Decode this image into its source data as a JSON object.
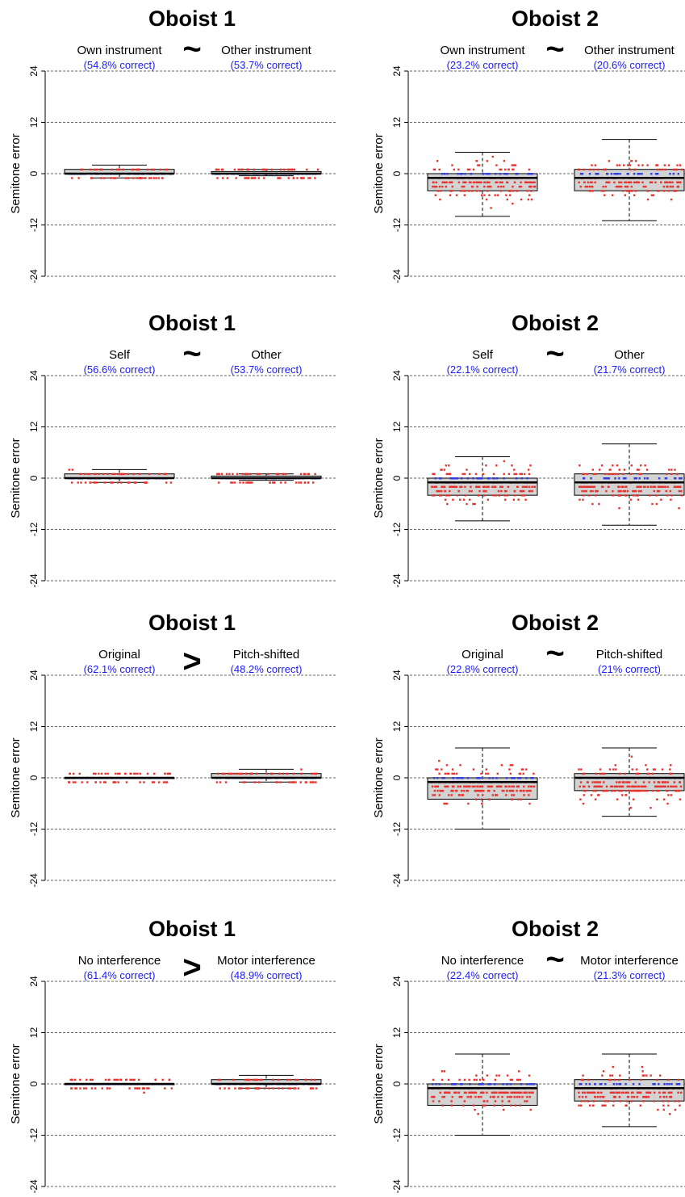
{
  "chart_data": [
    {
      "type": "box",
      "title": "Oboist 1",
      "ylabel": "Semitone error",
      "ylim": [
        -24,
        24
      ],
      "yticks": [
        "24",
        "12",
        "0",
        "-12",
        "-24"
      ],
      "grid": "horizontal dashed",
      "comparison": "~",
      "series": [
        {
          "name": "Own instrument",
          "accuracy": "(54.8% correct)",
          "box": {
            "q1": 0,
            "median": 0,
            "q3": 1,
            "whisker_low": -1,
            "whisker_high": 2
          }
        },
        {
          "name": "Other instrument",
          "accuracy": "(53.7% correct)",
          "box": {
            "q1": 0,
            "median": 0,
            "q3": 0.5,
            "whisker_low": -0.5,
            "whisker_high": 1
          }
        }
      ]
    },
    {
      "type": "box",
      "title": "Oboist 2",
      "ylabel": "Semitone error",
      "ylim": [
        -24,
        24
      ],
      "yticks": [
        "24",
        "12",
        "0",
        "-12",
        "-24"
      ],
      "grid": "horizontal dashed",
      "comparison": "~",
      "series": [
        {
          "name": "Own instrument",
          "accuracy": "(23.2% correct)",
          "box": {
            "q1": -4,
            "median": -1,
            "q3": 0,
            "whisker_low": -10,
            "whisker_high": 5
          }
        },
        {
          "name": "Other instrument",
          "accuracy": "(20.6% correct)",
          "box": {
            "q1": -4,
            "median": -1,
            "q3": 1,
            "whisker_low": -11,
            "whisker_high": 8
          }
        }
      ]
    },
    {
      "type": "box",
      "title": "Oboist 1",
      "ylabel": "Semitone error",
      "ylim": [
        -24,
        24
      ],
      "yticks": [
        "24",
        "12",
        "0",
        "-12",
        "-24"
      ],
      "grid": "horizontal dashed",
      "comparison": "~",
      "series": [
        {
          "name": "Self",
          "accuracy": "(56.6% correct)",
          "box": {
            "q1": 0,
            "median": 0,
            "q3": 1,
            "whisker_low": -1,
            "whisker_high": 2
          }
        },
        {
          "name": "Other",
          "accuracy": "(53.7% correct)",
          "box": {
            "q1": 0,
            "median": 0,
            "q3": 0.5,
            "whisker_low": -0.5,
            "whisker_high": 1
          }
        }
      ]
    },
    {
      "type": "box",
      "title": "Oboist 2",
      "ylabel": "Semitone error",
      "ylim": [
        -24,
        24
      ],
      "yticks": [
        "24",
        "12",
        "0",
        "-12",
        "-24"
      ],
      "grid": "horizontal dashed",
      "comparison": "~",
      "series": [
        {
          "name": "Self",
          "accuracy": "(22.1% correct)",
          "box": {
            "q1": -4,
            "median": -1,
            "q3": 0,
            "whisker_low": -10,
            "whisker_high": 5
          }
        },
        {
          "name": "Other",
          "accuracy": "(21.7% correct)",
          "box": {
            "q1": -4,
            "median": -1,
            "q3": 1,
            "whisker_low": -11,
            "whisker_high": 8
          }
        }
      ]
    },
    {
      "type": "box",
      "title": "Oboist 1",
      "ylabel": "Semitone error",
      "ylim": [
        -24,
        24
      ],
      "yticks": [
        "24",
        "12",
        "0",
        "-12",
        "-24"
      ],
      "grid": "horizontal dashed",
      "comparison": ">",
      "series": [
        {
          "name": "Original",
          "accuracy": "(62.1% correct)",
          "box": {
            "q1": 0,
            "median": 0,
            "q3": 0,
            "whisker_low": 0,
            "whisker_high": 0
          }
        },
        {
          "name": "Pitch-shifted",
          "accuracy": "(48.2% correct)",
          "box": {
            "q1": 0,
            "median": 0,
            "q3": 1,
            "whisker_low": -1,
            "whisker_high": 2
          }
        }
      ]
    },
    {
      "type": "box",
      "title": "Oboist 2",
      "ylabel": "Semitone error",
      "ylim": [
        -24,
        24
      ],
      "yticks": [
        "24",
        "12",
        "0",
        "-12",
        "-24"
      ],
      "grid": "horizontal dashed",
      "comparison": "~",
      "series": [
        {
          "name": "Original",
          "accuracy": "(22.8% correct)",
          "box": {
            "q1": -5,
            "median": -1,
            "q3": 0,
            "whisker_low": -12,
            "whisker_high": 7
          }
        },
        {
          "name": "Pitch-shifted",
          "accuracy": "(21% correct)",
          "box": {
            "q1": -3,
            "median": 0,
            "q3": 1,
            "whisker_low": -9,
            "whisker_high": 7
          }
        }
      ]
    },
    {
      "type": "box",
      "title": "Oboist 1",
      "ylabel": "Semitone error",
      "ylim": [
        -24,
        24
      ],
      "yticks": [
        "24",
        "12",
        "0",
        "-12",
        "-24"
      ],
      "grid": "horizontal dashed",
      "comparison": ">",
      "series": [
        {
          "name": "No interference",
          "accuracy": "(61.4% correct)",
          "box": {
            "q1": 0,
            "median": 0,
            "q3": 0,
            "whisker_low": 0,
            "whisker_high": 0
          }
        },
        {
          "name": "Motor interference",
          "accuracy": "(48.9% correct)",
          "box": {
            "q1": 0,
            "median": 0,
            "q3": 1,
            "whisker_low": -1,
            "whisker_high": 2
          }
        }
      ]
    },
    {
      "type": "box",
      "title": "Oboist 2",
      "ylabel": "Semitone error",
      "ylim": [
        -24,
        24
      ],
      "yticks": [
        "24",
        "12",
        "0",
        "-12",
        "-24"
      ],
      "grid": "horizontal dashed",
      "comparison": "~",
      "series": [
        {
          "name": "No interference",
          "accuracy": "(22.4% correct)",
          "box": {
            "q1": -5,
            "median": -1,
            "q3": 0,
            "whisker_low": -12,
            "whisker_high": 7
          }
        },
        {
          "name": "Motor interference",
          "accuracy": "(21.3% correct)",
          "box": {
            "q1": -4,
            "median": -1,
            "q3": 1,
            "whisker_low": -10,
            "whisker_high": 7
          }
        }
      ]
    }
  ],
  "colors": {
    "box_fill": "#d3d3d3",
    "points_error": "#e8322d",
    "points_correct": "#2d3be8",
    "accuracy_text": "#1a1aff",
    "grid": "#666666"
  }
}
